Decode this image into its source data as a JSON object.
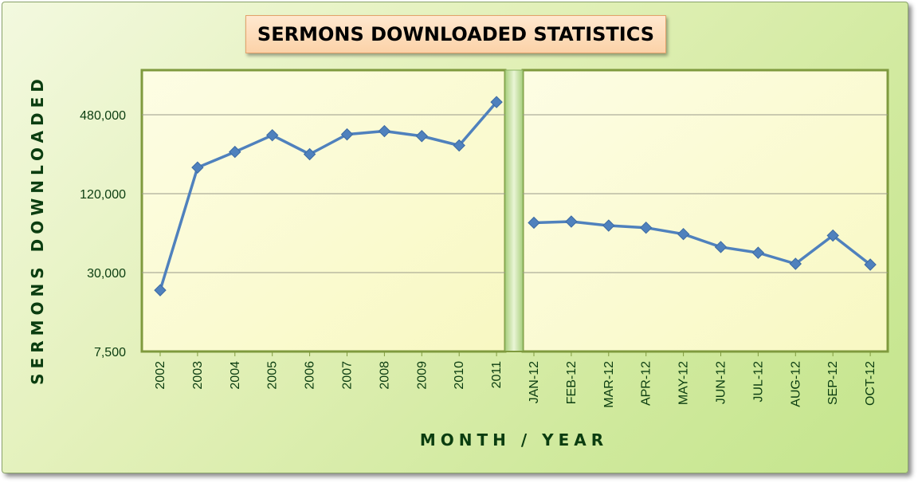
{
  "chart_data": {
    "type": "line",
    "title": "SERMONS DOWNLOADED STATISTICS",
    "xlabel": "MONTH / YEAR",
    "ylabel": "SERMONS DOWNLOADED",
    "y_scale": "log",
    "ylim": [
      7500,
      720000
    ],
    "y_ticks": [
      7500,
      30000,
      120000,
      480000
    ],
    "y_tick_labels": [
      "7,500",
      "30,000",
      "120,000",
      "480,000"
    ],
    "grid": true,
    "legend": "none",
    "line_color": "#4f81bd",
    "panels": [
      {
        "name": "yearly",
        "categories": [
          "2002",
          "2003",
          "2004",
          "2005",
          "2006",
          "2007",
          "2008",
          "2009",
          "2010",
          "2011"
        ],
        "values": [
          22000,
          190000,
          250000,
          335000,
          240000,
          340000,
          360000,
          330000,
          280000,
          600000
        ]
      },
      {
        "name": "monthly",
        "categories": [
          "JAN-12",
          "FEB-12",
          "MAR-12",
          "APR-12",
          "MAY-12",
          "JUN-12",
          "JUL-12",
          "AUG-12",
          "SEP-12",
          "OCT-12"
        ],
        "values": [
          72000,
          73500,
          68500,
          66000,
          59000,
          47000,
          42500,
          35000,
          57500,
          34500
        ]
      }
    ]
  }
}
